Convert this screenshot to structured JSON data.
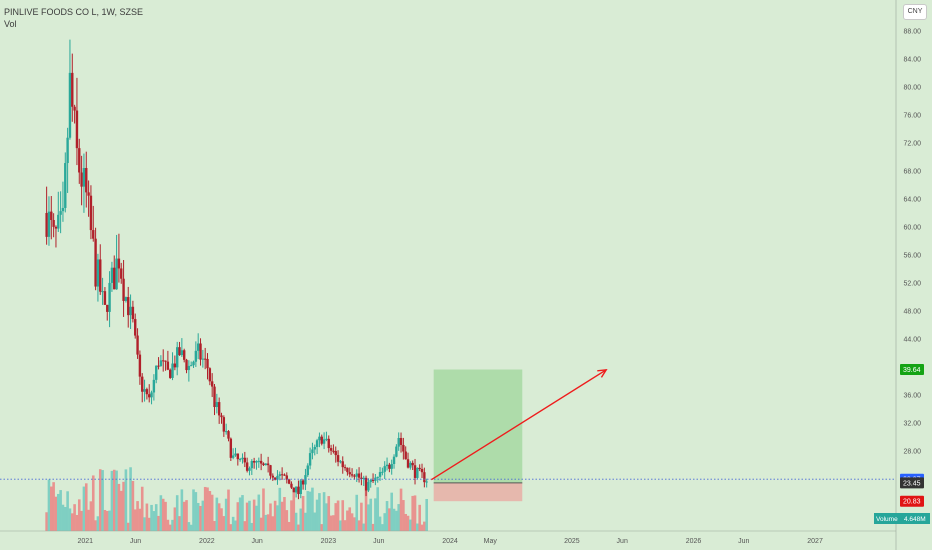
{
  "header": {
    "symbol_line": "PINLIVE FOODS CO L, 1W, SZSE",
    "volume_label": "Vol"
  },
  "currency_button": "CNY",
  "badges": {
    "target": "39.64",
    "last": "23.97",
    "entry": "23.45",
    "stop": "20.83",
    "volume_label": "Volume",
    "volume_value": "4.648M"
  },
  "colors": {
    "background": "#d9ecd5",
    "bull": "#2aa89a",
    "bear": "#b0202a",
    "vol_bull": "#7fcfc2",
    "vol_bear": "#e8938f",
    "arrow": "#ee1c1c",
    "profit_zone": "#a6d9a2",
    "loss_zone": "#e7b3a9",
    "target_badge": "#14a314",
    "last_badge": "#2962ff",
    "stop_badge": "#e01414",
    "volume_badge": "#26a69a"
  },
  "chart_data": {
    "type": "candlestick",
    "title": "PINLIVE FOODS CO L, 1W, SZSE",
    "y_axis": {
      "ticks": [
        88,
        84,
        80,
        76,
        72,
        68,
        64,
        60,
        56,
        52,
        48,
        44,
        36,
        32,
        28
      ],
      "tick_labels": [
        "88.00",
        "84.00",
        "80.00",
        "76.00",
        "72.00",
        "68.00",
        "64.00",
        "60.00",
        "56.00",
        "52.00",
        "48.00",
        "44.00",
        "36.00",
        "32.00",
        "28.00"
      ],
      "ylim": [
        20,
        89
      ]
    },
    "x_axis": {
      "tick_labels": [
        "2021",
        "Jun",
        "2022",
        "Jun",
        "2023",
        "Jun",
        "2024",
        "May",
        "2025",
        "Jun",
        "2026",
        "Jun",
        "2027"
      ],
      "tick_dates": [
        "2021-01-01",
        "2021-06-01",
        "2022-01-01",
        "2022-06-01",
        "2023-01-01",
        "2023-06-01",
        "2024-01-01",
        "2024-05-01",
        "2025-01-01",
        "2025-06-01",
        "2026-01-01",
        "2026-06-01",
        "2027-01-01"
      ],
      "range": [
        "2020-04-20",
        "2027-09-01"
      ]
    },
    "price_path": {
      "description": "weekly close approximation, anchored points",
      "anchors": [
        [
          "2020-09-07",
          62
        ],
        [
          "2020-09-28",
          58
        ],
        [
          "2020-10-26",
          60
        ],
        [
          "2020-11-16",
          80
        ],
        [
          "2020-12-07",
          70
        ],
        [
          "2021-01-04",
          64
        ],
        [
          "2021-02-01",
          54
        ],
        [
          "2021-03-01",
          48
        ],
        [
          "2021-04-12",
          56
        ],
        [
          "2021-05-03",
          50
        ],
        [
          "2021-05-24",
          46
        ],
        [
          "2021-06-14",
          38
        ],
        [
          "2021-07-12",
          35
        ],
        [
          "2021-08-09",
          41
        ],
        [
          "2021-09-06",
          39
        ],
        [
          "2021-10-11",
          42
        ],
        [
          "2021-11-08",
          40
        ],
        [
          "2021-12-06",
          42
        ],
        [
          "2022-01-03",
          40
        ],
        [
          "2022-01-24",
          35
        ],
        [
          "2022-02-21",
          31
        ],
        [
          "2022-03-21",
          27
        ],
        [
          "2022-04-25",
          26
        ],
        [
          "2022-06-06",
          26
        ],
        [
          "2022-07-11",
          25
        ],
        [
          "2022-08-22",
          24
        ],
        [
          "2022-10-03",
          22
        ],
        [
          "2022-11-07",
          27
        ],
        [
          "2022-12-12",
          30
        ],
        [
          "2023-01-09",
          28
        ],
        [
          "2023-02-13",
          26
        ],
        [
          "2023-03-20",
          25
        ],
        [
          "2023-04-24",
          23
        ],
        [
          "2023-05-29",
          24
        ],
        [
          "2023-07-03",
          26
        ],
        [
          "2023-07-31",
          30
        ],
        [
          "2023-08-21",
          27
        ],
        [
          "2023-09-18",
          25
        ],
        [
          "2023-10-23",
          24
        ]
      ]
    },
    "volume_series": {
      "name": "Vol",
      "last_value": "4.648M"
    },
    "position": {
      "type": "long",
      "entry": 23.45,
      "target": 39.64,
      "stop": 20.83,
      "start": "2023-11-13",
      "end": "2024-08-05"
    },
    "last_price": 23.97,
    "arrow": {
      "from": [
        "2023-11-06",
        23.9
      ],
      "to": [
        "2025-04-14",
        39.6
      ]
    }
  }
}
